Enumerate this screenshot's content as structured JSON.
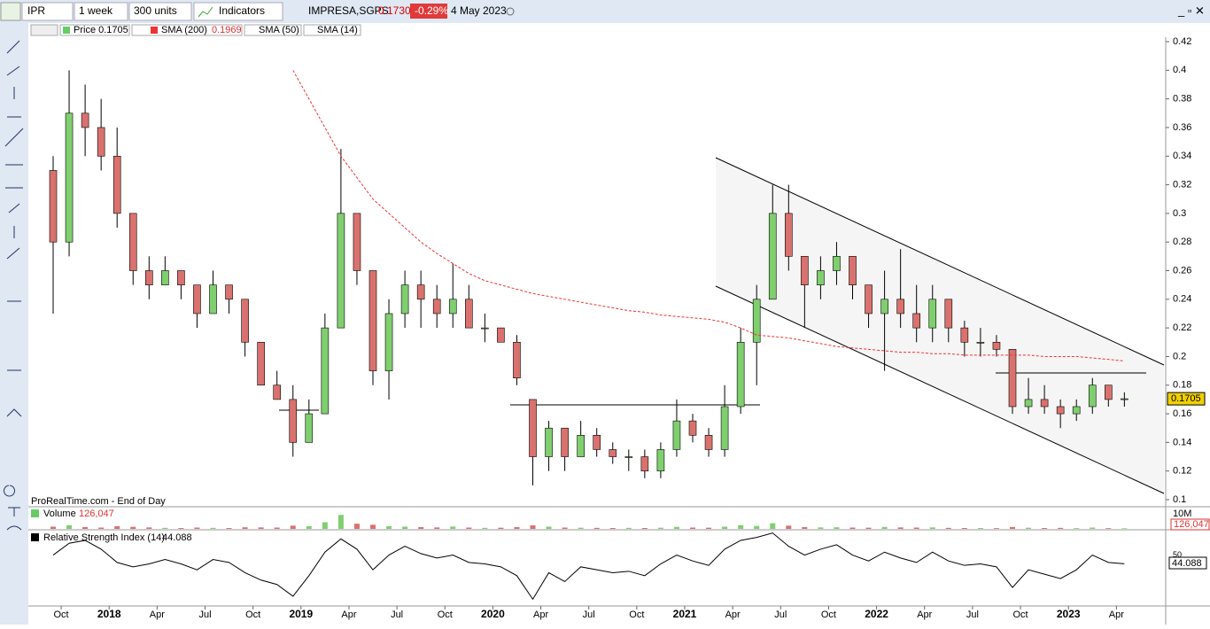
{
  "toolbar": {
    "ticker": "IPR",
    "period": "1 week",
    "units": "300 units",
    "indicators": "Indicators",
    "name": "IMPRESA,SGPS",
    "last": "0.1730",
    "change": "-0.29%",
    "date": "4 May 2023"
  },
  "legend": {
    "price": "Price 0.1705",
    "sma200": "SMA (200)",
    "sma200_value": "0.1969",
    "sma50": "SMA (50)",
    "sma14": "SMA (14)"
  },
  "source": "ProRealTime.com - End of Day",
  "chart_data": {
    "type": "candlestick",
    "price_tag": "0.1705",
    "ylim": [
      0.1,
      0.42
    ],
    "yticks": [
      0.1,
      0.12,
      0.14,
      0.16,
      0.18,
      0.2,
      0.22,
      0.24,
      0.26,
      0.28,
      0.3,
      0.32,
      0.34,
      0.36,
      0.38,
      0.4,
      0.42
    ],
    "x_labels": [
      null,
      "Oct",
      null,
      null,
      "2018",
      null,
      null,
      "Apr",
      null,
      null,
      "Jul",
      null,
      null,
      "Oct",
      null,
      null,
      "2019",
      null,
      null,
      "Apr",
      null,
      null,
      "Jul",
      null,
      null,
      "Oct",
      null,
      null,
      "2020",
      null,
      null,
      "Apr",
      null,
      null,
      "Jul",
      null,
      null,
      "Oct",
      null,
      null,
      "2021",
      null,
      null,
      "Apr",
      null,
      null,
      "Jul",
      null,
      null,
      "Oct",
      null,
      null,
      "2022",
      null,
      null,
      "Apr",
      null,
      null,
      "Jul",
      null,
      null,
      "Oct",
      null,
      null,
      "2023",
      null,
      null,
      "Apr"
    ],
    "open": [
      0.33,
      0.28,
      0.37,
      0.36,
      0.34,
      0.3,
      0.26,
      0.25,
      0.26,
      0.25,
      0.23,
      0.25,
      0.24,
      0.21,
      0.18,
      0.17,
      0.14,
      0.16,
      0.22,
      0.3,
      0.26,
      0.19,
      0.23,
      0.25,
      0.24,
      0.23,
      0.24,
      0.22,
      0.22,
      0.21,
      0.17,
      0.13,
      0.15,
      0.13,
      0.145,
      0.135,
      0.13,
      0.13,
      0.12,
      0.135,
      0.155,
      0.145,
      0.135,
      0.165,
      0.21,
      0.24,
      0.3,
      0.27,
      0.25,
      0.26,
      0.27,
      0.25,
      0.23,
      0.24,
      0.23,
      0.22,
      0.24,
      0.22,
      0.21,
      0.21,
      0.205,
      0.165,
      0.17,
      0.165,
      0.16,
      0.165,
      0.18,
      0.17
    ],
    "high": [
      0.34,
      0.4,
      0.39,
      0.38,
      0.36,
      0.3,
      0.27,
      0.27,
      0.26,
      0.25,
      0.26,
      0.25,
      0.24,
      0.21,
      0.19,
      0.18,
      0.17,
      0.23,
      0.345,
      0.3,
      0.26,
      0.24,
      0.26,
      0.26,
      0.25,
      0.265,
      0.25,
      0.23,
      0.22,
      0.215,
      0.17,
      0.155,
      0.15,
      0.155,
      0.15,
      0.14,
      0.135,
      0.135,
      0.14,
      0.17,
      0.16,
      0.15,
      0.18,
      0.22,
      0.25,
      0.32,
      0.32,
      0.27,
      0.27,
      0.28,
      0.27,
      0.25,
      0.26,
      0.275,
      0.25,
      0.25,
      0.24,
      0.225,
      0.22,
      0.215,
      0.205,
      0.185,
      0.18,
      0.17,
      0.17,
      0.185,
      0.18,
      0.175
    ],
    "low": [
      0.23,
      0.27,
      0.34,
      0.33,
      0.29,
      0.25,
      0.24,
      0.25,
      0.24,
      0.22,
      0.23,
      0.23,
      0.2,
      0.18,
      0.17,
      0.13,
      0.14,
      0.16,
      0.22,
      0.25,
      0.18,
      0.17,
      0.22,
      0.22,
      0.22,
      0.22,
      0.22,
      0.21,
      0.21,
      0.18,
      0.11,
      0.12,
      0.12,
      0.13,
      0.13,
      0.125,
      0.12,
      0.115,
      0.115,
      0.13,
      0.14,
      0.13,
      0.13,
      0.16,
      0.18,
      0.24,
      0.26,
      0.22,
      0.24,
      0.25,
      0.24,
      0.22,
      0.19,
      0.22,
      0.21,
      0.21,
      0.21,
      0.2,
      0.2,
      0.2,
      0.16,
      0.16,
      0.16,
      0.15,
      0.155,
      0.16,
      0.165,
      0.165
    ],
    "close": [
      0.28,
      0.37,
      0.36,
      0.34,
      0.3,
      0.26,
      0.25,
      0.26,
      0.25,
      0.23,
      0.25,
      0.24,
      0.21,
      0.18,
      0.17,
      0.14,
      0.16,
      0.22,
      0.3,
      0.26,
      0.19,
      0.23,
      0.25,
      0.24,
      0.23,
      0.24,
      0.22,
      0.22,
      0.21,
      0.185,
      0.13,
      0.15,
      0.13,
      0.145,
      0.135,
      0.13,
      0.13,
      0.12,
      0.135,
      0.155,
      0.145,
      0.135,
      0.165,
      0.21,
      0.24,
      0.3,
      0.27,
      0.25,
      0.26,
      0.27,
      0.25,
      0.23,
      0.24,
      0.23,
      0.22,
      0.24,
      0.22,
      0.21,
      0.21,
      0.205,
      0.165,
      0.17,
      0.165,
      0.16,
      0.165,
      0.18,
      0.17,
      0.1705
    ],
    "sma200": [
      null,
      null,
      null,
      null,
      null,
      null,
      null,
      null,
      null,
      null,
      null,
      null,
      null,
      null,
      null,
      0.4,
      0.38,
      0.36,
      0.34,
      0.325,
      0.31,
      0.3,
      0.29,
      0.28,
      0.272,
      0.265,
      0.258,
      0.253,
      0.25,
      0.247,
      0.244,
      0.242,
      0.24,
      0.238,
      0.236,
      0.234,
      0.232,
      0.231,
      0.229,
      0.228,
      0.227,
      0.226,
      0.224,
      0.22,
      0.215,
      0.214,
      0.213,
      0.211,
      0.209,
      0.207,
      0.206,
      0.205,
      0.204,
      0.203,
      0.203,
      0.202,
      0.202,
      0.201,
      0.201,
      0.201,
      0.201,
      0.201,
      0.2,
      0.2,
      0.2,
      0.199,
      0.198,
      0.1969
    ],
    "volume_title": "Volume",
    "volume_label": "126,047",
    "vol_ylim": [
      0,
      12000000
    ],
    "vol_yticks": [
      {
        "value": 10000000,
        "label": "10M"
      }
    ],
    "volume": [
      1500000,
      2500000,
      1200000,
      900000,
      1800000,
      1400000,
      1000000,
      700000,
      600000,
      900000,
      700000,
      600000,
      1100000,
      1000000,
      900000,
      2200000,
      1800000,
      4500000,
      9500000,
      3500000,
      2800000,
      1800000,
      1500000,
      1200000,
      1000000,
      1600000,
      900000,
      700000,
      800000,
      1200000,
      2400000,
      1500000,
      900000,
      800000,
      700000,
      600000,
      700000,
      600000,
      800000,
      1400000,
      900000,
      800000,
      1500000,
      2500000,
      2000000,
      3800000,
      2200000,
      1200000,
      1000000,
      1100000,
      900000,
      800000,
      1300000,
      1000000,
      900000,
      1000000,
      700000,
      600000,
      600000,
      500000,
      1300000,
      800000,
      600000,
      700000,
      500000,
      900000,
      500000,
      400000
    ],
    "rsi_title": "Relative Strength Index (14)",
    "rsi_value": "44.088",
    "rsi_ylim": [
      16,
      66
    ],
    "rsi_yticks": [
      50
    ],
    "rsi": [
      50,
      58,
      60,
      54,
      45,
      42,
      44,
      47,
      44,
      40,
      47,
      45,
      38,
      33,
      30,
      22,
      36,
      52,
      61,
      54,
      40,
      50,
      56,
      51,
      48,
      50,
      45,
      44,
      42,
      36,
      20,
      38,
      32,
      42,
      40,
      38,
      39,
      36,
      44,
      50,
      46,
      43,
      54,
      60,
      62,
      65,
      56,
      50,
      54,
      57,
      50,
      46,
      52,
      48,
      45,
      52,
      46,
      43,
      44,
      42,
      28,
      40,
      37,
      34,
      40,
      50,
      45,
      44.088
    ]
  }
}
